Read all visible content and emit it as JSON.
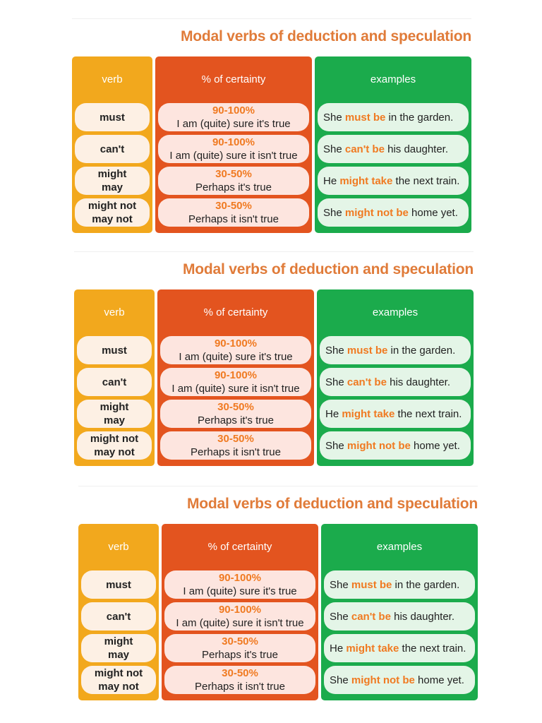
{
  "title": "Modal verbs of deduction and speculation",
  "headers": {
    "verb": "verb",
    "certainty": "% of certainty",
    "examples": "examples"
  },
  "rows": [
    {
      "verb1": "must",
      "verb2": "",
      "pct": "90-100%",
      "meaning": "I am (quite) sure it's true",
      "ex_pre": "She ",
      "ex_hl": "must be",
      "ex_post": " in the garden."
    },
    {
      "verb1": "can't",
      "verb2": "",
      "pct": "90-100%",
      "meaning": "I am (quite) sure it isn't true",
      "ex_pre": "She ",
      "ex_hl": "can't be",
      "ex_post": " his daughter."
    },
    {
      "verb1": "might",
      "verb2": "may",
      "pct": "30-50%",
      "meaning": "Perhaps it's true",
      "ex_pre": "He ",
      "ex_hl": "might take",
      "ex_post": " the next train."
    },
    {
      "verb1": "might not",
      "verb2": "may not",
      "pct": "30-50%",
      "meaning": "Perhaps it isn't true",
      "ex_pre": "She ",
      "ex_hl": "might not be",
      "ex_post": " home yet."
    }
  ],
  "colors": {
    "title": "#e07b39",
    "verb_column": "#f2a81d",
    "certainty_column": "#e3541f",
    "examples_column": "#1bab4c",
    "highlight": "#f07a21"
  }
}
